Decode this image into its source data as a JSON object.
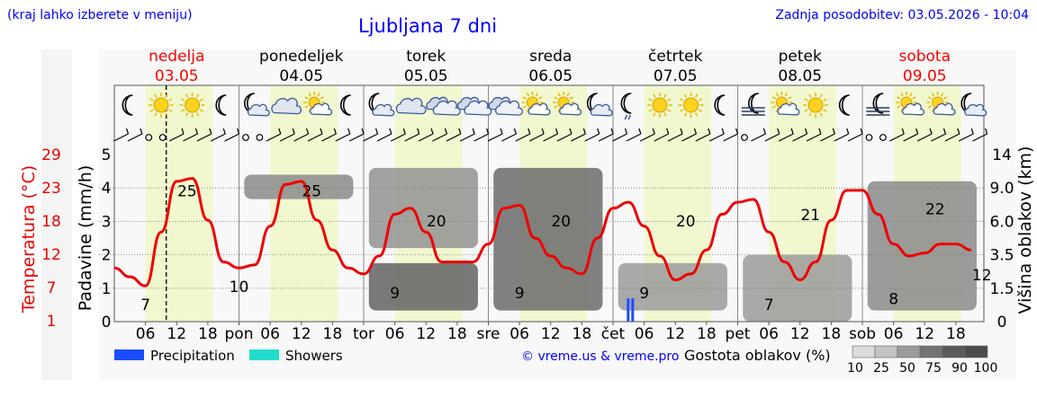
{
  "header": {
    "location_hint": "(kraj lahko izberete v meniju)",
    "title": "Ljubljana 7 dni",
    "updated": "Zadnja posodobitev: 03.05.2026 - 10:04"
  },
  "colors": {
    "blue_text": "#0000ff",
    "weekend_red": "#ff0000",
    "temperature": "#ee0000",
    "day_band": "#f1f8cf",
    "precip": "#1a4dff",
    "showers": "#22ddcc"
  },
  "days": [
    {
      "name": "nedelja",
      "date": "03.05",
      "weekend": true
    },
    {
      "name": "ponedeljek",
      "date": "04.05",
      "weekend": false
    },
    {
      "name": "torek",
      "date": "05.05",
      "weekend": false
    },
    {
      "name": "sreda",
      "date": "06.05",
      "weekend": false
    },
    {
      "name": "četrtek",
      "date": "07.05",
      "weekend": false
    },
    {
      "name": "petek",
      "date": "08.05",
      "weekend": false
    },
    {
      "name": "sobota",
      "date": "09.05",
      "weekend": true
    }
  ],
  "icons": [
    "moon",
    "sun",
    "sun",
    "moon",
    "moon-cloud",
    "cloud",
    "sun-cloud",
    "moon",
    "moon-cloud",
    "cloud",
    "clouds",
    "clouds",
    "clouds",
    "sun-cloud",
    "sun-cloud",
    "moon-cloud",
    "moon-rain",
    "sun",
    "sun",
    "moon",
    "moon-fog",
    "sun-cloud",
    "sun",
    "moon",
    "moon-fog",
    "sun-cloud",
    "sun-cloud",
    "moon-cloud"
  ],
  "wind_symbols": [
    "barb",
    "barb",
    "calm",
    "calm",
    "barb",
    "barb",
    "barb",
    "barb",
    "barb",
    "calm",
    "calm",
    "barb",
    "barb",
    "barb",
    "barb",
    "barb",
    "barb",
    "barb",
    "barb",
    "barb",
    "barb",
    "barb",
    "barb",
    "barb",
    "barb",
    "barb",
    "barb",
    "barb",
    "barb",
    "barb",
    "barb",
    "barb",
    "barb",
    "barb",
    "barb",
    "barb",
    "barb",
    "barb",
    "barb",
    "barb",
    "barb",
    "barb",
    "barb",
    "barb",
    "barb",
    "calm",
    "barb",
    "barb",
    "barb",
    "barb",
    "barb",
    "barb",
    "barb",
    "barb",
    "calm",
    "calm",
    "barb",
    "barb",
    "barb",
    "barb",
    "barb",
    "barb",
    "barb"
  ],
  "axis_left": {
    "temperature_label": "Temperatura (°C)",
    "temperature_ticks": [
      "29",
      "23",
      "18",
      "12",
      "7",
      "1"
    ],
    "precip_label": "Padavine (mm/h)",
    "precip_ticks": [
      "5",
      "4",
      "3",
      "2",
      "1",
      "0"
    ]
  },
  "axis_right": {
    "label": "Višina oblakov (km)",
    "ticks": [
      "14",
      "9.0",
      "6.0",
      "3.5",
      "1.5",
      "0"
    ]
  },
  "x_axis": {
    "labels": [
      "06",
      "12",
      "18",
      "pon",
      "06",
      "12",
      "18",
      "tor",
      "06",
      "12",
      "18",
      "sre",
      "06",
      "12",
      "18",
      "čet",
      "06",
      "12",
      "18",
      "pet",
      "06",
      "12",
      "18",
      "sob",
      "06",
      "12",
      "18"
    ]
  },
  "legend": {
    "precipitation": "Precipitation",
    "showers": "Showers",
    "credit": "© vreme.us & vreme.pro",
    "cloud_density": "Gostota oblakov (%)",
    "scale": [
      "10",
      "25",
      "50",
      "75",
      "90",
      "100"
    ]
  },
  "chart_data": {
    "type": "line",
    "title": "Ljubljana 7 dni",
    "ylabel": "Temperatura (°C)",
    "y2label": "Padavine (mm/h)",
    "y3label": "Višina oblakov (km)",
    "ylim": [
      1,
      29
    ],
    "temperature_series": {
      "name": "Temperatura (°C)",
      "x_hours_from_start": [
        0,
        3,
        6,
        9,
        12,
        15,
        18,
        21,
        24,
        27,
        30,
        33,
        36,
        39,
        42,
        45,
        48,
        51,
        54,
        57,
        60,
        63,
        66,
        69,
        72,
        75,
        78,
        81,
        84,
        87,
        90,
        93,
        96,
        99,
        102,
        105,
        108,
        111,
        114,
        117,
        120,
        123,
        126,
        129,
        132,
        135,
        138,
        141,
        144,
        147,
        150,
        153,
        156,
        159,
        162,
        165
      ],
      "values": [
        10,
        8.5,
        7,
        16,
        24.5,
        25,
        18,
        11,
        10,
        10.5,
        17,
        24,
        24.5,
        18,
        13,
        10,
        9,
        12,
        19,
        20,
        16,
        11,
        11,
        11,
        14,
        20,
        20.5,
        15,
        12,
        10,
        9,
        15,
        20,
        21,
        17,
        12,
        8,
        9,
        13,
        19,
        21,
        21.5,
        16,
        11,
        8,
        11,
        18,
        23,
        23,
        19,
        14,
        12,
        12.5,
        14,
        14,
        13
      ]
    },
    "temperature_labels": [
      {
        "day": "nedelja",
        "hour": 6,
        "value": 7
      },
      {
        "day": "nedelja",
        "hour": 14,
        "value": 25
      },
      {
        "day": "ponedeljek",
        "hour": 0,
        "value": 10
      },
      {
        "day": "ponedeljek",
        "hour": 14,
        "value": 25
      },
      {
        "day": "torek",
        "hour": 6,
        "value": 9
      },
      {
        "day": "torek",
        "hour": 14,
        "value": 20
      },
      {
        "day": "sreda",
        "hour": 6,
        "value": 9
      },
      {
        "day": "sreda",
        "hour": 14,
        "value": 20
      },
      {
        "day": "četrtek",
        "hour": 6,
        "value": 9
      },
      {
        "day": "četrtek",
        "hour": 14,
        "value": 20
      },
      {
        "day": "petek",
        "hour": 6,
        "value": 7
      },
      {
        "day": "petek",
        "hour": 14,
        "value": 21
      },
      {
        "day": "sobota",
        "hour": 6,
        "value": 8
      },
      {
        "day": "sobota",
        "hour": 14,
        "value": 22
      },
      {
        "day": "sobota",
        "hour": 23,
        "value": 12
      }
    ],
    "precipitation_mm_h": [
      {
        "day": "četrtek",
        "hour": 3,
        "value": 0.7
      }
    ],
    "cloud_layers": [
      {
        "day": "nedelja",
        "alt_km_from": 0,
        "alt_km_to": 0,
        "density": 0
      },
      {
        "day": "ponedeljek",
        "alt_km_from": 8,
        "alt_km_to": 11,
        "density": 60
      },
      {
        "day": "torek",
        "alt_km_from": 4,
        "alt_km_to": 12,
        "density": 55
      },
      {
        "day": "torek",
        "alt_km_from": 0.5,
        "alt_km_to": 3,
        "density": 85
      },
      {
        "day": "sreda",
        "alt_km_from": 0.5,
        "alt_km_to": 12,
        "density": 80
      },
      {
        "day": "četrtek",
        "alt_km_from": 0.5,
        "alt_km_to": 3,
        "density": 50
      },
      {
        "day": "petek",
        "alt_km_from": 0,
        "alt_km_to": 3.5,
        "density": 50
      },
      {
        "day": "sobota",
        "alt_km_from": 0.5,
        "alt_km_to": 10,
        "density": 60
      }
    ],
    "grid": true,
    "legend": "bottom"
  }
}
